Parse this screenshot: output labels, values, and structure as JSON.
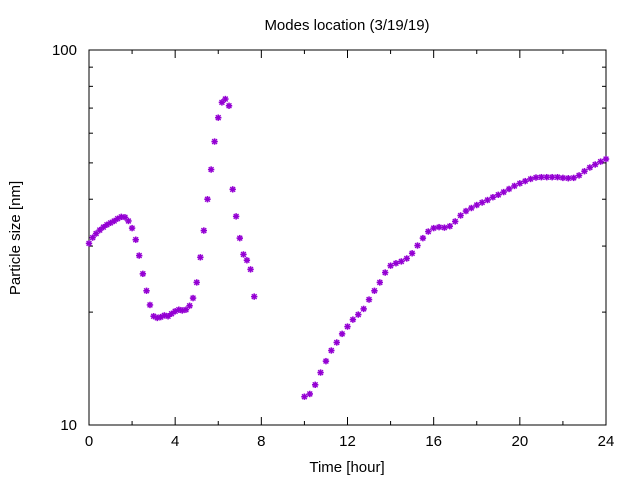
{
  "chart_data": {
    "type": "scatter",
    "title": "Modes location (3/19/19)",
    "xlabel": "Time [hour]",
    "ylabel": "Particle size [nm]",
    "xlim": [
      0,
      24
    ],
    "ylim": [
      10,
      100
    ],
    "yscale": "log",
    "xticks": [
      0,
      4,
      8,
      12,
      16,
      20,
      24
    ],
    "xtick_labels": [
      "0",
      "4",
      "8",
      "12",
      "16",
      "20",
      "24"
    ],
    "yticks": [
      10,
      100
    ],
    "ytick_labels": [
      "10",
      "100"
    ],
    "grid": false,
    "legend": "none",
    "marker_color": "#9400d3",
    "series": [
      {
        "points": [
          [
            0.0,
            30.5
          ],
          [
            0.17,
            31.6
          ],
          [
            0.33,
            32.4
          ],
          [
            0.5,
            33.1
          ],
          [
            0.67,
            33.7
          ],
          [
            0.83,
            34.2
          ],
          [
            1.0,
            34.6
          ],
          [
            1.17,
            35.0
          ],
          [
            1.33,
            35.5
          ],
          [
            1.5,
            35.9
          ],
          [
            1.67,
            35.8
          ],
          [
            1.83,
            35.0
          ],
          [
            2.0,
            33.5
          ],
          [
            2.17,
            31.2
          ],
          [
            2.33,
            28.3
          ],
          [
            2.5,
            25.3
          ],
          [
            2.67,
            22.8
          ],
          [
            2.83,
            20.9
          ],
          [
            3.0,
            19.5
          ],
          [
            3.17,
            19.3
          ],
          [
            3.33,
            19.4
          ],
          [
            3.5,
            19.6
          ],
          [
            3.67,
            19.5
          ],
          [
            3.83,
            19.8
          ],
          [
            4.0,
            20.1
          ],
          [
            4.17,
            20.3
          ],
          [
            4.33,
            20.2
          ],
          [
            4.5,
            20.3
          ],
          [
            4.67,
            20.8
          ],
          [
            4.83,
            21.8
          ],
          [
            5.0,
            24.0
          ],
          [
            5.17,
            28.0
          ],
          [
            5.33,
            33.0
          ],
          [
            5.5,
            40.0
          ],
          [
            5.67,
            48.0
          ],
          [
            5.83,
            57.0
          ],
          [
            6.0,
            66.0
          ],
          [
            6.17,
            72.5
          ],
          [
            6.33,
            74.0
          ],
          [
            6.5,
            71.0
          ],
          [
            6.67,
            42.5
          ],
          [
            6.83,
            36.0
          ],
          [
            7.0,
            31.5
          ],
          [
            7.17,
            28.5
          ],
          [
            7.33,
            27.5
          ],
          [
            7.5,
            26.0
          ],
          [
            7.67,
            22.0
          ],
          [
            10.0,
            11.9
          ],
          [
            10.25,
            12.1
          ],
          [
            10.5,
            12.8
          ],
          [
            10.75,
            13.8
          ],
          [
            11.0,
            14.8
          ],
          [
            11.25,
            15.8
          ],
          [
            11.5,
            16.6
          ],
          [
            11.75,
            17.5
          ],
          [
            12.0,
            18.3
          ],
          [
            12.25,
            19.1
          ],
          [
            12.5,
            19.7
          ],
          [
            12.75,
            20.4
          ],
          [
            13.0,
            21.6
          ],
          [
            13.25,
            22.8
          ],
          [
            13.5,
            24.0
          ],
          [
            13.75,
            25.5
          ],
          [
            14.0,
            26.6
          ],
          [
            14.25,
            27.0
          ],
          [
            14.5,
            27.3
          ],
          [
            14.75,
            27.8
          ],
          [
            15.0,
            28.7
          ],
          [
            15.25,
            30.1
          ],
          [
            15.5,
            31.5
          ],
          [
            15.75,
            32.8
          ],
          [
            16.0,
            33.5
          ],
          [
            16.25,
            33.7
          ],
          [
            16.5,
            33.6
          ],
          [
            16.75,
            33.9
          ],
          [
            17.0,
            34.9
          ],
          [
            17.25,
            36.2
          ],
          [
            17.5,
            37.2
          ],
          [
            17.75,
            37.9
          ],
          [
            18.0,
            38.6
          ],
          [
            18.25,
            39.2
          ],
          [
            18.5,
            39.8
          ],
          [
            18.75,
            40.5
          ],
          [
            19.0,
            41.1
          ],
          [
            19.25,
            41.8
          ],
          [
            19.5,
            42.6
          ],
          [
            19.75,
            43.4
          ],
          [
            20.0,
            44.1
          ],
          [
            20.25,
            44.7
          ],
          [
            20.5,
            45.3
          ],
          [
            20.75,
            45.7
          ],
          [
            21.0,
            45.8
          ],
          [
            21.25,
            45.8
          ],
          [
            21.5,
            45.8
          ],
          [
            21.75,
            45.8
          ],
          [
            22.0,
            45.6
          ],
          [
            22.25,
            45.5
          ],
          [
            22.5,
            45.6
          ],
          [
            22.75,
            46.3
          ],
          [
            23.0,
            47.5
          ],
          [
            23.25,
            48.6
          ],
          [
            23.5,
            49.5
          ],
          [
            23.75,
            50.4
          ],
          [
            24.0,
            51.2
          ]
        ]
      }
    ]
  }
}
